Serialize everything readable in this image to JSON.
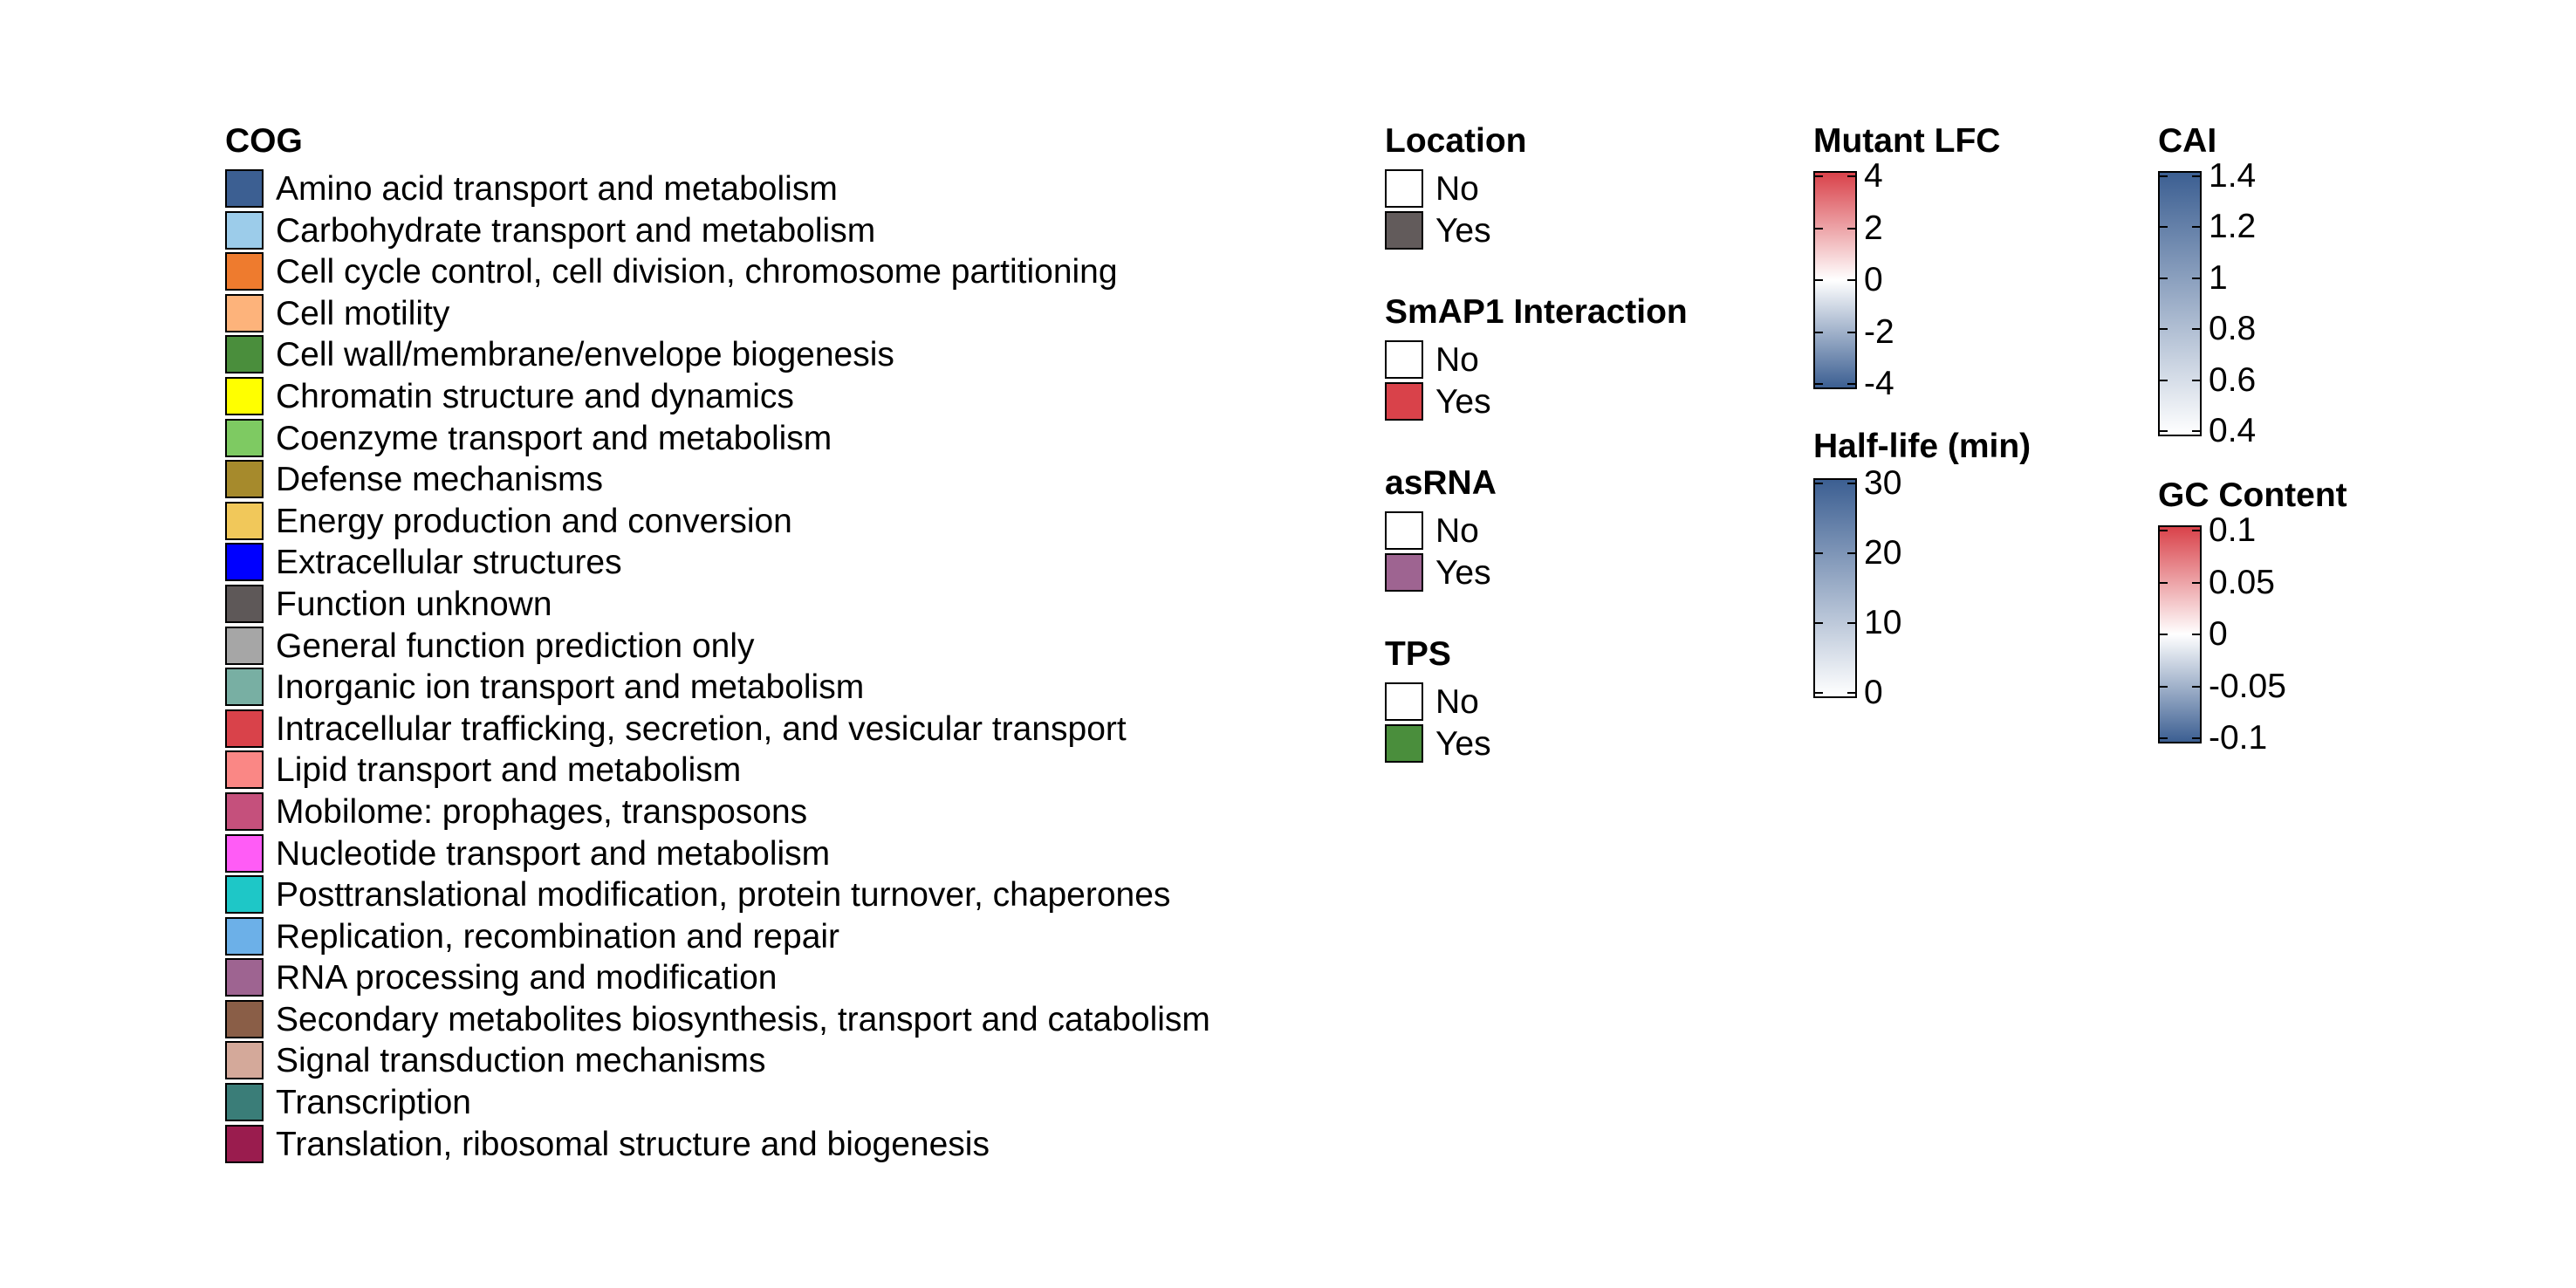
{
  "chart_data": [
    {
      "type": "legend",
      "title": "COG",
      "items": [
        {
          "label": "Amino acid transport and metabolism",
          "color": "#3C5F92"
        },
        {
          "label": "Carbohydrate transport and metabolism",
          "color": "#9CCCEA"
        },
        {
          "label": "Cell cycle control, cell division, chromosome partitioning",
          "color": "#EE7B2E"
        },
        {
          "label": "Cell motility",
          "color": "#FDB37B"
        },
        {
          "label": "Cell wall/membrane/envelope biogenesis",
          "color": "#4A8E3C"
        },
        {
          "label": "Chromatin structure and dynamics",
          "color": "#FFFF00"
        },
        {
          "label": "Coenzyme transport and metabolism",
          "color": "#7ECA62"
        },
        {
          "label": "Defense mechanisms",
          "color": "#A68A2C"
        },
        {
          "label": "Energy production and conversion",
          "color": "#F1C85A"
        },
        {
          "label": "Extracellular structures",
          "color": "#0000FF"
        },
        {
          "label": "Function unknown",
          "color": "#5E5858"
        },
        {
          "label": "General function prediction only",
          "color": "#A6A6A6"
        },
        {
          "label": "Inorganic ion transport and metabolism",
          "color": "#78AFA3"
        },
        {
          "label": "Intracellular trafficking, secretion, and vesicular transport",
          "color": "#D9424A"
        },
        {
          "label": "Lipid transport and metabolism",
          "color": "#FA8785"
        },
        {
          "label": "Mobilome: prophages, transposons",
          "color": "#C5507C"
        },
        {
          "label": "Nucleotide transport and metabolism",
          "color": "#FF5CF6"
        },
        {
          "label": "Posttranslational modification, protein turnover, chaperones",
          "color": "#1EC7C7"
        },
        {
          "label": "Replication, recombination and repair",
          "color": "#6CB0E8"
        },
        {
          "label": "RNA processing and modification",
          "color": "#9E6491"
        },
        {
          "label": "Secondary metabolites biosynthesis, transport and catabolism",
          "color": "#8A5E47"
        },
        {
          "label": "Signal transduction mechanisms",
          "color": "#D4A99A"
        },
        {
          "label": "Transcription",
          "color": "#3A7D78"
        },
        {
          "label": "Translation, ribosomal structure and biogenesis",
          "color": "#9A1C4E"
        }
      ]
    },
    {
      "type": "legend",
      "title": "Location",
      "items": [
        {
          "label": "No",
          "color": "#FFFFFF"
        },
        {
          "label": "Yes",
          "color": "#625B5B"
        }
      ]
    },
    {
      "type": "legend",
      "title": "SmAP1 Interaction",
      "items": [
        {
          "label": "No",
          "color": "#FFFFFF"
        },
        {
          "label": "Yes",
          "color": "#D9424A"
        }
      ]
    },
    {
      "type": "legend",
      "title": "asRNA",
      "items": [
        {
          "label": "No",
          "color": "#FFFFFF"
        },
        {
          "label": "Yes",
          "color": "#9E6491"
        }
      ]
    },
    {
      "type": "legend",
      "title": "TPS",
      "items": [
        {
          "label": "No",
          "color": "#FFFFFF"
        },
        {
          "label": "Yes",
          "color": "#4A8E3C"
        }
      ]
    },
    {
      "type": "colorbar",
      "title": "Mutant LFC",
      "range": [
        -4,
        4
      ],
      "ticks": [
        4,
        2,
        0,
        -2,
        -4
      ],
      "tick_labels": [
        "4",
        "2",
        "0",
        "-2",
        "-4"
      ],
      "colors": [
        "#D9424A",
        "#FFFFFF",
        "#3C5F92"
      ]
    },
    {
      "type": "colorbar",
      "title": "Half-life (min)",
      "range": [
        0,
        30
      ],
      "ticks": [
        30,
        20,
        10,
        0
      ],
      "tick_labels": [
        "30",
        "20",
        "10",
        "0"
      ],
      "colors": [
        "#3C5F92",
        "#FFFFFF"
      ]
    },
    {
      "type": "colorbar",
      "title": "CAI",
      "range": [
        0.4,
        1.4
      ],
      "ticks": [
        1.4,
        1.2,
        1,
        0.8,
        0.6,
        0.4
      ],
      "tick_labels": [
        "1.4",
        "1.2",
        "1",
        "0.8",
        "0.6",
        "0.4"
      ],
      "colors": [
        "#3C5F92",
        "#FFFFFF"
      ]
    },
    {
      "type": "colorbar",
      "title": "GC Content",
      "range": [
        -0.1,
        0.1
      ],
      "ticks": [
        0.1,
        0.05,
        0,
        -0.05,
        -0.1
      ],
      "tick_labels": [
        "0.1",
        "0.05",
        "0",
        "-0.05",
        "-0.1"
      ],
      "colors": [
        "#D9424A",
        "#FFFFFF",
        "#3C5F92"
      ]
    }
  ]
}
